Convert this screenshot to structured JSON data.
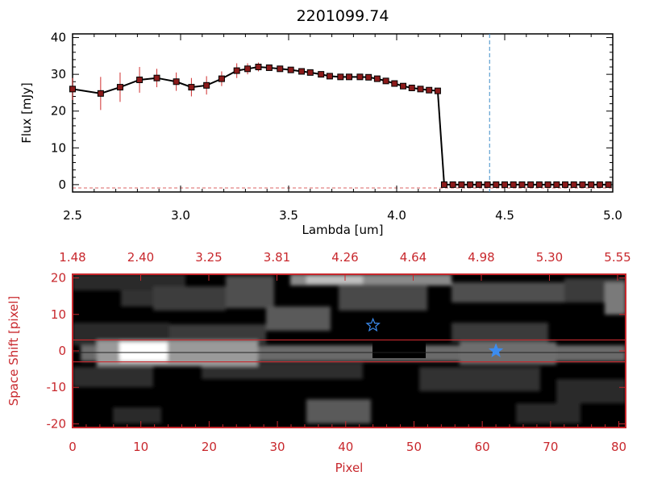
{
  "chart_data": [
    {
      "type": "line",
      "title": "2201099.74",
      "xlabel": "Lambda [um]",
      "ylabel": "Flux [mJy]",
      "xlim": [
        2.5,
        5.0
      ],
      "ylim": [
        -2,
        41
      ],
      "xticks": [
        "2.5",
        "3.0",
        "3.5",
        "4.0",
        "4.5",
        "5.0"
      ],
      "yticks": [
        "0",
        "10",
        "20",
        "30",
        "40"
      ],
      "reference_line_x": 4.43,
      "reference_line_color": "#3c8cc8",
      "marker_color": "#8b1a1a",
      "errorbar_color": "#d03030",
      "x": [
        2.5,
        2.63,
        2.72,
        2.81,
        2.89,
        2.98,
        3.05,
        3.12,
        3.19,
        3.26,
        3.31,
        3.36,
        3.41,
        3.46,
        3.51,
        3.56,
        3.6,
        3.65,
        3.69,
        3.74,
        3.78,
        3.83,
        3.87,
        3.91,
        3.95,
        3.99,
        4.03,
        4.07,
        4.11,
        4.15,
        4.19,
        4.22,
        4.26,
        4.3,
        4.34,
        4.38,
        4.42,
        4.46,
        4.5,
        4.54,
        4.58,
        4.62,
        4.66,
        4.7,
        4.74,
        4.78,
        4.82,
        4.86,
        4.9,
        4.94,
        4.98
      ],
      "y": [
        26.0,
        24.8,
        26.5,
        28.5,
        29.0,
        28.0,
        26.5,
        27.0,
        28.8,
        31.0,
        31.5,
        32.0,
        31.8,
        31.5,
        31.2,
        30.8,
        30.5,
        30.0,
        29.5,
        29.3,
        29.3,
        29.3,
        29.2,
        28.8,
        28.2,
        27.5,
        26.8,
        26.3,
        26.0,
        25.7,
        25.5,
        0,
        0,
        0,
        0,
        0,
        0,
        0,
        0,
        0,
        0,
        0,
        0,
        0,
        0,
        0,
        0,
        0,
        0,
        0,
        0
      ],
      "yerr": [
        3.0,
        4.5,
        4.0,
        3.5,
        2.5,
        2.5,
        2.5,
        2.5,
        2.0,
        2.0,
        1.5,
        1.2,
        0.8,
        0.5,
        0.5,
        0.5,
        0.5,
        0.5,
        0.5,
        0.5,
        0.5,
        0.5,
        0.5,
        0.5,
        0.5,
        0.5,
        0.5,
        0.5,
        0.5,
        0.5,
        0.5,
        0,
        0,
        0,
        0,
        0,
        0,
        0,
        0,
        0,
        0,
        0,
        0,
        0,
        0,
        0,
        0,
        0,
        0,
        0,
        0
      ]
    },
    {
      "type": "heatmap",
      "xlabel": "Pixel",
      "ylabel": "Space Shift [pixel]",
      "xlim": [
        0,
        81
      ],
      "ylim": [
        -21,
        21
      ],
      "xticks": [
        "0",
        "10",
        "20",
        "30",
        "40",
        "50",
        "60",
        "70",
        "80"
      ],
      "yticks": [
        "-20",
        "-10",
        "0",
        "10",
        "20"
      ],
      "top_axis_ticks": [
        "1.48",
        "2.40",
        "3.25",
        "3.81",
        "4.26",
        "4.64",
        "4.98",
        "5.30",
        "5.55"
      ],
      "aperture_lines_y": [
        3,
        -3
      ],
      "aperture_color": "#c8282d",
      "star_markers": [
        {
          "x": 44,
          "y": 7,
          "filled": false
        },
        {
          "x": 62,
          "y": 0,
          "filled": true
        }
      ],
      "star_color": "#3c8cf0"
    }
  ]
}
